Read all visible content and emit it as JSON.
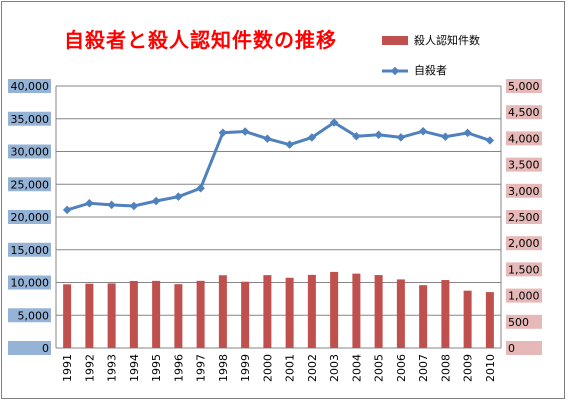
{
  "chart_data": {
    "type": "bar",
    "title": "自殺者と殺人認知件数の推移",
    "categories": [
      "1991",
      "1992",
      "1993",
      "1994",
      "1995",
      "1996",
      "1997",
      "1998",
      "1999",
      "2000",
      "2001",
      "2002",
      "2003",
      "2004",
      "2005",
      "2006",
      "2007",
      "2008",
      "2009",
      "2010"
    ],
    "series": [
      {
        "name": "殺人認知件数",
        "type": "bar",
        "axis": "right",
        "color": "#c0504d",
        "values": [
          1215,
          1227,
          1233,
          1279,
          1281,
          1218,
          1282,
          1388,
          1265,
          1391,
          1340,
          1396,
          1452,
          1419,
          1392,
          1309,
          1199,
          1297,
          1094,
          1067
        ]
      },
      {
        "name": "自殺者",
        "type": "line",
        "axis": "left",
        "color": "#4f81bd",
        "values": [
          21084,
          22104,
          21851,
          21679,
          22445,
          23104,
          24391,
          32863,
          33048,
          31957,
          31042,
          32143,
          34427,
          32325,
          32552,
          32155,
          33093,
          32249,
          32845,
          31690
        ]
      }
    ],
    "y_left": {
      "ylim": [
        0,
        40000
      ],
      "ticks": [
        "0",
        "5,000",
        "10,000",
        "15,000",
        "20,000",
        "25,000",
        "30,000",
        "35,000",
        "40,000"
      ],
      "tick_bg": "#95b3d7"
    },
    "y_right": {
      "ylim": [
        0,
        5000
      ],
      "ticks": [
        "0",
        "500",
        "1,000",
        "1,500",
        "2,000",
        "2,500",
        "3,000",
        "3,500",
        "4,000",
        "4,500",
        "5,000"
      ],
      "tick_bg": "#e6b9b8"
    },
    "grid": true,
    "legend": "top-right"
  }
}
